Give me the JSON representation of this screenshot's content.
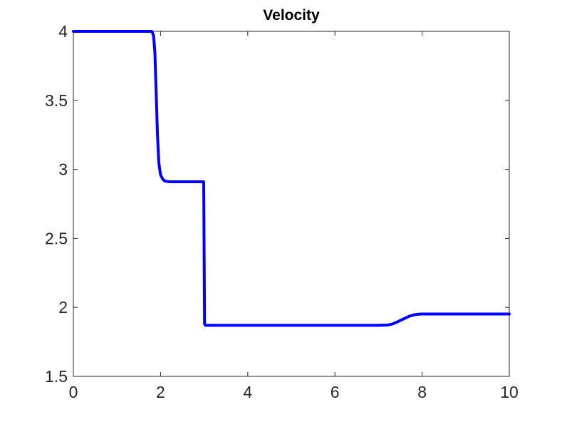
{
  "chart_data": {
    "type": "line",
    "title": "Velocity",
    "xlabel": "",
    "ylabel": "",
    "xlim": [
      0,
      10
    ],
    "ylim": [
      1.5,
      4
    ],
    "xticks": [
      0,
      2,
      4,
      6,
      8,
      10
    ],
    "xtick_labels": [
      "0",
      "2",
      "4",
      "6",
      "8",
      "10"
    ],
    "yticks": [
      1.5,
      2,
      2.5,
      3,
      3.5,
      4
    ],
    "ytick_labels": [
      "1.5",
      "2",
      "2.5",
      "3",
      "3.5",
      "4"
    ],
    "grid": false,
    "legend": "none",
    "series": [
      {
        "color": "#0000ff",
        "x": [
          0,
          1.5,
          1.8,
          1.84,
          1.87,
          1.9,
          1.93,
          1.96,
          2.0,
          2.05,
          2.1,
          2.2,
          2.5,
          2.99,
          3.0,
          3.01,
          3.03,
          3.2,
          5.0,
          7.0,
          7.2,
          7.3,
          7.4,
          7.5,
          7.6,
          7.7,
          7.8,
          7.9,
          8.0,
          8.2,
          9.0,
          10.0
        ],
        "y": [
          4.0,
          4.0,
          4.0,
          3.97,
          3.85,
          3.55,
          3.25,
          3.05,
          2.96,
          2.93,
          2.915,
          2.91,
          2.91,
          2.91,
          2.4,
          1.88,
          1.87,
          1.87,
          1.87,
          1.87,
          1.872,
          1.878,
          1.89,
          1.905,
          1.92,
          1.935,
          1.945,
          1.95,
          1.952,
          1.952,
          1.952,
          1.952
        ]
      }
    ]
  }
}
